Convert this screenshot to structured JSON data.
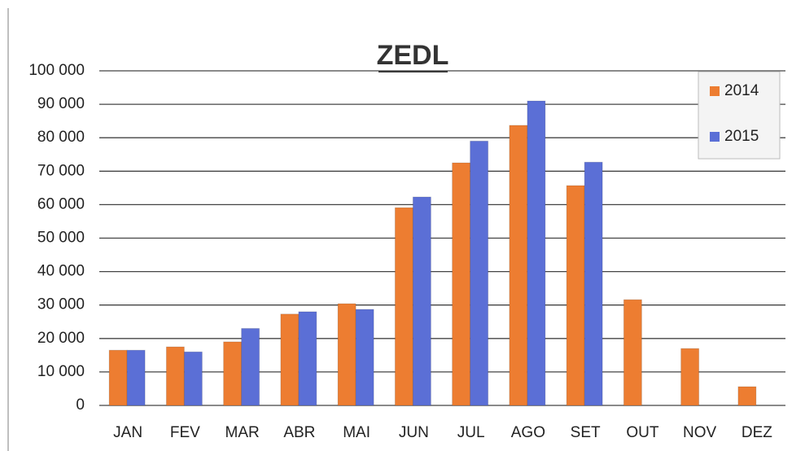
{
  "chart_data": {
    "type": "bar",
    "title": "ZEDL",
    "categories": [
      "JAN",
      "FEV",
      "MAR",
      "ABR",
      "MAI",
      "JUN",
      "JUL",
      "AGO",
      "SET",
      "OUT",
      "NOV",
      "DEZ"
    ],
    "series": [
      {
        "name": "2014",
        "color": "#ed7d31",
        "values": [
          16500,
          17500,
          19000,
          27300,
          30400,
          59100,
          72500,
          83700,
          65700,
          31600,
          17000,
          5600
        ]
      },
      {
        "name": "2015",
        "color": "#5b6fd6",
        "values": [
          16500,
          16000,
          23000,
          28000,
          28700,
          62300,
          79000,
          91000,
          72700,
          null,
          null,
          null
        ]
      }
    ],
    "ylim": [
      0,
      100000
    ],
    "yticks": [
      0,
      {
        "value": 10000,
        "label": "10 000"
      },
      {
        "value": 20000,
        "label": "20 000"
      },
      {
        "value": 30000,
        "label": "30 000"
      },
      {
        "value": 40000,
        "label": "40 000"
      },
      {
        "value": 50000,
        "label": "50 000"
      },
      {
        "value": 60000,
        "label": "60 000"
      },
      {
        "value": 70000,
        "label": "70 000"
      },
      {
        "value": 80000,
        "label": "80 000"
      },
      {
        "value": 90000,
        "label": "90 000"
      },
      {
        "value": 100000,
        "label": "100 000"
      }
    ],
    "grid": true,
    "legend": "top-right"
  }
}
